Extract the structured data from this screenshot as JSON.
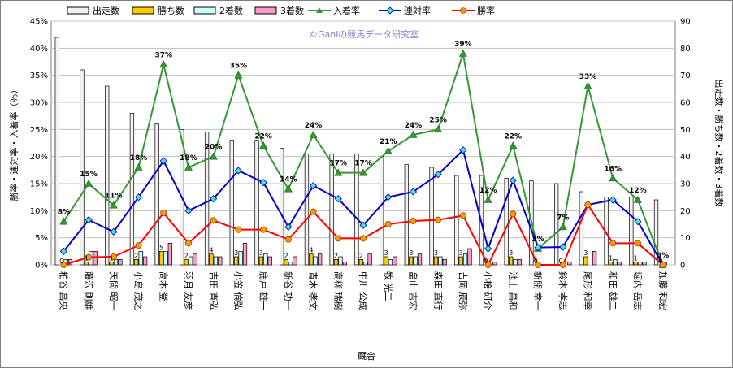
{
  "chart_data": {
    "type": "bar",
    "watermark": "©Ganiの競馬データ研究室",
    "xlabel": "厩舎",
    "ylabel_left": "勝率・連対率・入着率（％）",
    "ylabel_right": "出走数・勝ち数・2着数・3着数",
    "left_axis": {
      "min": 0,
      "max": 45,
      "step": 5,
      "suffix": "%"
    },
    "right_axis": {
      "min": 0,
      "max": 90,
      "step": 10
    },
    "grid": true,
    "legend_position": "top",
    "categories": [
      "粕谷 昌央",
      "藤沢 則雄",
      "天間 昭一",
      "小島 茂之",
      "高木 登",
      "羽月 友彦",
      "吉田 直弘",
      "小笠 倫弘",
      "鹿戸 雄一",
      "新谷 功一",
      "青木 孝文",
      "高柳 瑞樹",
      "中川 公成",
      "牧 光二",
      "畠山 吉宏",
      "森田 直行",
      "吉岡 辰弥",
      "小桧 研介",
      "池上 昌和",
      "新開 幸一",
      "鈴木 孝志",
      "尾形 和幸",
      "和田 雄二",
      "堀内 岳志",
      "加藤 和宏"
    ],
    "bar_series": [
      {
        "name": "出走数",
        "color": "#f2f2f2",
        "values": [
          84,
          72,
          66,
          56,
          52,
          50,
          49,
          46,
          46,
          43,
          41,
          41,
          41,
          40,
          37,
          36,
          33,
          33,
          32,
          31,
          30,
          27,
          25,
          25,
          24
        ]
      },
      {
        "name": "勝ち数",
        "color": "#ffcc00",
        "values": [
          0,
          1,
          1,
          2,
          5,
          2,
          4,
          3,
          3,
          2,
          4,
          2,
          2,
          3,
          3,
          3,
          3,
          0,
          3,
          0,
          0,
          3,
          1,
          1,
          0
        ]
      },
      {
        "name": "2着数",
        "color": "#ccffff",
        "values": [
          2,
          5,
          2,
          5,
          5,
          3,
          3,
          5,
          4,
          1,
          3,
          3,
          1,
          2,
          3,
          3,
          4,
          1,
          2,
          0,
          0,
          0,
          2,
          1,
          1
        ]
      },
      {
        "name": "3着数",
        "color": "#ff99cc",
        "values": [
          2,
          5,
          2,
          3,
          8,
          4,
          3,
          8,
          3,
          3,
          4,
          1,
          4,
          3,
          4,
          2,
          6,
          1,
          2,
          0,
          1,
          5,
          1,
          1,
          0
        ]
      }
    ],
    "line_series": [
      {
        "name": "入着率",
        "color": "#339933",
        "marker": "triangle",
        "values": [
          8,
          15,
          11,
          18,
          37,
          18,
          20,
          35,
          22,
          14,
          24,
          17,
          17,
          21,
          24,
          25,
          39,
          12,
          22,
          3,
          7,
          33,
          16,
          12,
          0
        ]
      },
      {
        "name": "連対率",
        "color": "#0000cc",
        "marker": "diamond",
        "values": [
          2.5,
          8.3,
          6.1,
          12.5,
          19.2,
          10.0,
          12.2,
          17.4,
          15.2,
          7.0,
          14.6,
          12.2,
          7.3,
          12.5,
          13.5,
          16.7,
          21.2,
          3.0,
          15.6,
          3.2,
          3.3,
          11.1,
          12.0,
          8.0,
          0
        ]
      },
      {
        "name": "勝率",
        "color": "#ff0000",
        "marker": "circle",
        "values": [
          0,
          1.4,
          1.5,
          3.6,
          9.6,
          4.0,
          8.2,
          6.5,
          6.5,
          4.7,
          9.8,
          4.9,
          4.9,
          7.5,
          8.1,
          8.3,
          9.1,
          0,
          9.4,
          0,
          0,
          11.1,
          4.0,
          4.0,
          0
        ]
      }
    ],
    "pct_labels": [
      "8%",
      "15%",
      "11%",
      "18%",
      "37%",
      "18%",
      "20%",
      "35%",
      "22%",
      "14%",
      "24%",
      "17%",
      "17%",
      "21%",
      "24%",
      "25%",
      "39%",
      "12%",
      "22%",
      "3%",
      "7%",
      "33%",
      "16%",
      "12%",
      "0%"
    ]
  }
}
